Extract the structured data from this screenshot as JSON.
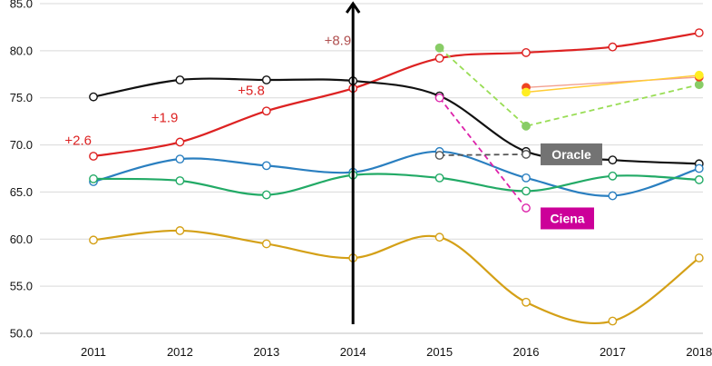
{
  "chart_data": {
    "type": "line",
    "title": "",
    "xlabel": "",
    "ylabel": "",
    "ylim": [
      50.0,
      85.0
    ],
    "yticks": [
      "85.0",
      "80.0",
      "75.0",
      "70.0",
      "65.0",
      "60.0",
      "55.0",
      "50.0"
    ],
    "ytick_values": [
      85,
      80,
      75,
      70,
      65,
      60,
      55,
      50
    ],
    "x": [
      "2011",
      "2012",
      "2013",
      "2014",
      "2015",
      "2016",
      "2017",
      "2018"
    ],
    "grid": "horizontal",
    "series": [
      {
        "color": "#dd2222",
        "marker_fill": "#ffffff",
        "dashed": false,
        "values": [
          68.8,
          70.3,
          73.6,
          76.0,
          79.2,
          79.8,
          80.4,
          81.9
        ]
      },
      {
        "color": "#111111",
        "marker_fill": "#ffffff",
        "dashed": false,
        "values": [
          75.1,
          76.9,
          76.9,
          76.8,
          75.2,
          69.3,
          68.4,
          68.0
        ]
      },
      {
        "color": "#2a7fc0",
        "marker_fill": "#ffffff",
        "dashed": false,
        "values": [
          66.1,
          68.5,
          67.8,
          67.1,
          69.3,
          66.5,
          64.6,
          67.5
        ]
      },
      {
        "color": "#22aa66",
        "marker_fill": "#ffffff",
        "dashed": false,
        "values": [
          66.4,
          66.2,
          64.7,
          66.8,
          66.5,
          65.1,
          66.7,
          66.3
        ]
      },
      {
        "color": "#d4a017",
        "marker_fill": "#ffffff",
        "dashed": false,
        "values": [
          59.9,
          60.9,
          59.5,
          58.0,
          60.2,
          53.3,
          51.3,
          58.0
        ]
      }
    ],
    "extra_series": [
      {
        "color": "#99dd55",
        "marker_fill": "#88cc66",
        "dashed": true,
        "x": [
          "2015",
          "2016",
          "2018"
        ],
        "values": [
          80.3,
          72.0,
          76.4
        ]
      },
      {
        "color": "#dd22aa",
        "marker_fill": "#ffffff",
        "dashed": true,
        "x": [
          "2015",
          "2016"
        ],
        "values": [
          75.0,
          63.3
        ]
      },
      {
        "color": "#555555",
        "marker_fill": "#ffffff",
        "dashed": true,
        "x": [
          "2015",
          "2016"
        ],
        "values": [
          68.9,
          69.0
        ]
      },
      {
        "color": "#f2a090",
        "marker_fill": "#ee4422",
        "dashed": false,
        "x": [
          "2016",
          "2018"
        ],
        "values": [
          76.1,
          77.2
        ]
      },
      {
        "color": "#ffcc33",
        "marker_fill": "#ffee22",
        "dashed": false,
        "x": [
          "2016",
          "2018"
        ],
        "values": [
          75.6,
          77.4
        ]
      }
    ],
    "annotations": [
      {
        "text": "+2.6",
        "x": "2011",
        "y": 70.0,
        "color": "#dd2222"
      },
      {
        "text": "+1.9",
        "x": "2012",
        "y": 72.4,
        "color": "#dd2222"
      },
      {
        "text": "+5.8",
        "x": "2013",
        "y": 75.3,
        "color": "#dd2222"
      },
      {
        "text": "+8.9",
        "x": "2014",
        "y": 80.6,
        "color": "#b05050"
      }
    ],
    "labels": [
      {
        "text": "Oracle",
        "x": "2016",
        "y": 69.0,
        "bg": "#737373"
      },
      {
        "text": "Ciena",
        "x": "2016",
        "y": 62.2,
        "bg": "#cc0099"
      }
    ],
    "marker_line": {
      "x": "2014"
    }
  }
}
